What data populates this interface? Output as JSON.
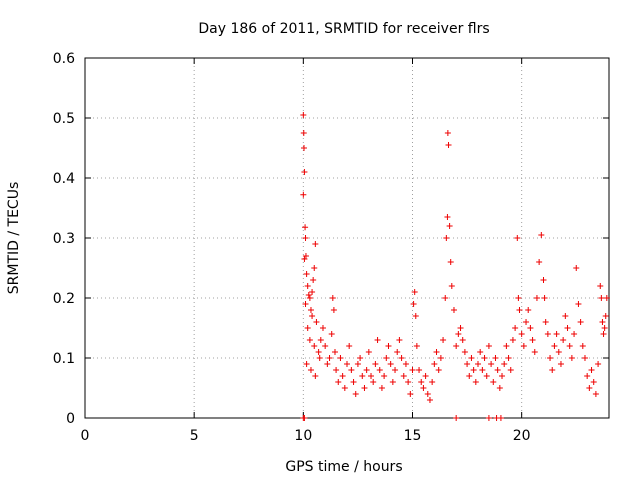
{
  "chart_data": {
    "type": "scatter",
    "title": "Day 186 of 2011, SRMTID for receiver flrs",
    "xlabel": "GPS time / hours",
    "ylabel": "SRMTID / TECUs",
    "xlim": [
      0,
      24
    ],
    "ylim": [
      0,
      0.6
    ],
    "x_ticks": [
      0,
      5,
      10,
      15,
      20
    ],
    "x_tick_labels": [
      "0",
      "5",
      "10",
      "15",
      "20"
    ],
    "y_ticks": [
      0,
      0.1,
      0.2,
      0.3,
      0.4,
      0.5,
      0.6
    ],
    "y_tick_labels": [
      "0",
      "0.1",
      "0.2",
      "0.3",
      "0.4",
      "0.5",
      "0.6"
    ],
    "grid": true,
    "marker": "+",
    "color": "#ee0000",
    "series": [
      {
        "name": "SRMTID",
        "points": [
          [
            10.0,
            0.505
          ],
          [
            10.02,
            0.475
          ],
          [
            10.03,
            0.45
          ],
          [
            10.05,
            0.41
          ],
          [
            10.0,
            0.372
          ],
          [
            10.08,
            0.318
          ],
          [
            10.1,
            0.3
          ],
          [
            10.05,
            0.265
          ],
          [
            10.12,
            0.27
          ],
          [
            10.15,
            0.24
          ],
          [
            10.2,
            0.22
          ],
          [
            10.25,
            0.205
          ],
          [
            10.1,
            0.19
          ],
          [
            10.3,
            0.2
          ],
          [
            10.35,
            0.18
          ],
          [
            10.4,
            0.17
          ],
          [
            10.45,
            0.23
          ],
          [
            10.5,
            0.25
          ],
          [
            10.55,
            0.29
          ],
          [
            10.4,
            0.21
          ],
          [
            10.6,
            0.16
          ],
          [
            10.2,
            0.15
          ],
          [
            10.3,
            0.13
          ],
          [
            10.5,
            0.12
          ],
          [
            10.7,
            0.11
          ],
          [
            10.15,
            0.09
          ],
          [
            10.35,
            0.08
          ],
          [
            10.55,
            0.07
          ],
          [
            10.75,
            0.1
          ],
          [
            10.8,
            0.13
          ],
          [
            10.9,
            0.15
          ],
          [
            11.0,
            0.12
          ],
          [
            11.1,
            0.09
          ],
          [
            11.2,
            0.1
          ],
          [
            11.3,
            0.14
          ],
          [
            11.35,
            0.2
          ],
          [
            11.4,
            0.18
          ],
          [
            11.45,
            0.11
          ],
          [
            11.5,
            0.08
          ],
          [
            11.6,
            0.06
          ],
          [
            11.7,
            0.1
          ],
          [
            11.8,
            0.07
          ],
          [
            11.9,
            0.05
          ],
          [
            12.0,
            0.09
          ],
          [
            12.1,
            0.12
          ],
          [
            12.2,
            0.08
          ],
          [
            12.3,
            0.06
          ],
          [
            12.4,
            0.04
          ],
          [
            12.5,
            0.09
          ],
          [
            12.6,
            0.1
          ],
          [
            12.7,
            0.07
          ],
          [
            12.8,
            0.05
          ],
          [
            12.9,
            0.08
          ],
          [
            13.0,
            0.11
          ],
          [
            13.1,
            0.07
          ],
          [
            13.2,
            0.06
          ],
          [
            13.3,
            0.09
          ],
          [
            13.4,
            0.13
          ],
          [
            13.5,
            0.08
          ],
          [
            13.6,
            0.05
          ],
          [
            13.7,
            0.07
          ],
          [
            13.8,
            0.1
          ],
          [
            13.9,
            0.12
          ],
          [
            14.0,
            0.09
          ],
          [
            14.1,
            0.06
          ],
          [
            14.2,
            0.08
          ],
          [
            14.3,
            0.11
          ],
          [
            14.4,
            0.13
          ],
          [
            14.5,
            0.1
          ],
          [
            14.6,
            0.07
          ],
          [
            14.7,
            0.09
          ],
          [
            14.8,
            0.06
          ],
          [
            14.9,
            0.04
          ],
          [
            15.0,
            0.08
          ],
          [
            15.05,
            0.19
          ],
          [
            15.1,
            0.21
          ],
          [
            15.15,
            0.17
          ],
          [
            15.2,
            0.12
          ],
          [
            15.3,
            0.08
          ],
          [
            15.4,
            0.06
          ],
          [
            15.5,
            0.05
          ],
          [
            15.6,
            0.07
          ],
          [
            15.7,
            0.04
          ],
          [
            15.8,
            0.03
          ],
          [
            15.9,
            0.06
          ],
          [
            16.0,
            0.09
          ],
          [
            16.1,
            0.11
          ],
          [
            16.2,
            0.08
          ],
          [
            16.3,
            0.1
          ],
          [
            16.4,
            0.13
          ],
          [
            16.5,
            0.2
          ],
          [
            16.55,
            0.3
          ],
          [
            16.6,
            0.335
          ],
          [
            16.62,
            0.475
          ],
          [
            16.65,
            0.455
          ],
          [
            16.7,
            0.32
          ],
          [
            16.75,
            0.26
          ],
          [
            16.8,
            0.22
          ],
          [
            16.9,
            0.18
          ],
          [
            17.0,
            0.12
          ],
          [
            17.1,
            0.14
          ],
          [
            17.2,
            0.15
          ],
          [
            17.3,
            0.13
          ],
          [
            17.4,
            0.11
          ],
          [
            17.5,
            0.09
          ],
          [
            17.6,
            0.07
          ],
          [
            17.7,
            0.1
          ],
          [
            17.8,
            0.08
          ],
          [
            17.9,
            0.06
          ],
          [
            18.0,
            0.09
          ],
          [
            18.1,
            0.11
          ],
          [
            18.2,
            0.08
          ],
          [
            18.3,
            0.1
          ],
          [
            18.4,
            0.07
          ],
          [
            18.5,
            0.12
          ],
          [
            18.6,
            0.09
          ],
          [
            18.7,
            0.06
          ],
          [
            18.8,
            0.1
          ],
          [
            18.9,
            0.08
          ],
          [
            19.0,
            0.05
          ],
          [
            19.1,
            0.07
          ],
          [
            19.2,
            0.09
          ],
          [
            19.3,
            0.12
          ],
          [
            19.4,
            0.1
          ],
          [
            19.5,
            0.08
          ],
          [
            19.6,
            0.13
          ],
          [
            19.7,
            0.15
          ],
          [
            19.8,
            0.3
          ],
          [
            19.85,
            0.2
          ],
          [
            19.9,
            0.18
          ],
          [
            20.0,
            0.14
          ],
          [
            20.1,
            0.12
          ],
          [
            20.2,
            0.16
          ],
          [
            20.3,
            0.18
          ],
          [
            20.4,
            0.15
          ],
          [
            20.5,
            0.13
          ],
          [
            20.6,
            0.11
          ],
          [
            20.7,
            0.2
          ],
          [
            20.8,
            0.26
          ],
          [
            20.9,
            0.305
          ],
          [
            21.0,
            0.23
          ],
          [
            21.05,
            0.2
          ],
          [
            21.1,
            0.16
          ],
          [
            21.2,
            0.14
          ],
          [
            21.3,
            0.1
          ],
          [
            21.4,
            0.08
          ],
          [
            21.5,
            0.12
          ],
          [
            21.6,
            0.14
          ],
          [
            21.7,
            0.11
          ],
          [
            21.8,
            0.09
          ],
          [
            21.9,
            0.13
          ],
          [
            22.0,
            0.17
          ],
          [
            22.1,
            0.15
          ],
          [
            22.2,
            0.12
          ],
          [
            22.3,
            0.1
          ],
          [
            22.4,
            0.14
          ],
          [
            22.5,
            0.25
          ],
          [
            22.6,
            0.19
          ],
          [
            22.7,
            0.16
          ],
          [
            22.8,
            0.12
          ],
          [
            22.9,
            0.1
          ],
          [
            23.0,
            0.07
          ],
          [
            23.1,
            0.05
          ],
          [
            23.2,
            0.08
          ],
          [
            23.3,
            0.06
          ],
          [
            23.4,
            0.04
          ],
          [
            23.5,
            0.09
          ],
          [
            23.6,
            0.22
          ],
          [
            23.65,
            0.2
          ],
          [
            23.7,
            0.16
          ],
          [
            23.75,
            0.14
          ],
          [
            23.8,
            0.15
          ],
          [
            23.85,
            0.17
          ],
          [
            23.9,
            0.2
          ],
          [
            10.0,
            0.0
          ],
          [
            10.05,
            0.0
          ],
          [
            17.0,
            0.0
          ],
          [
            18.5,
            0.0
          ],
          [
            18.85,
            0.0
          ],
          [
            19.05,
            0.0
          ]
        ]
      }
    ]
  }
}
